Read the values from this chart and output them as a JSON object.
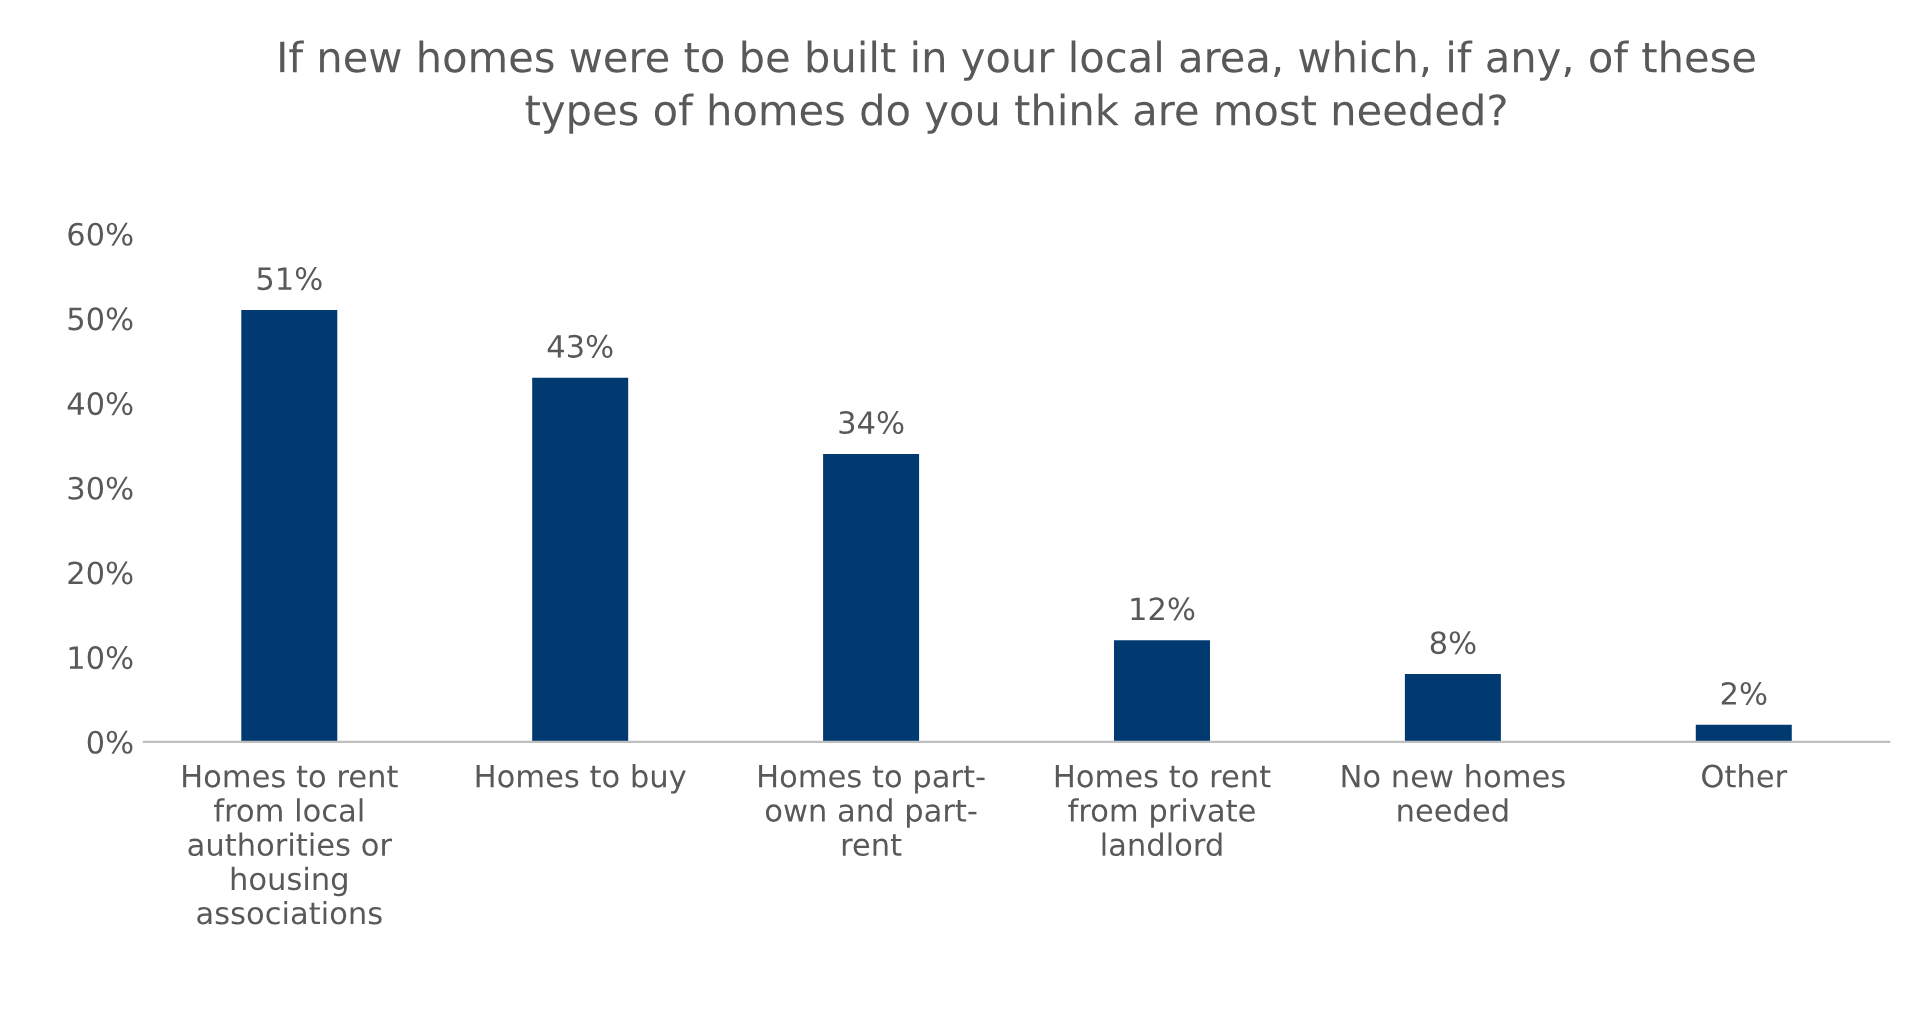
{
  "chart_data": {
    "type": "bar",
    "title": "If new homes were to be built in your local area, which, if any, of these\ntypes of homes do you think are most needed?",
    "categories": [
      "Homes to rent\nfrom local\nauthorities or\nhousing\nassociations",
      "Homes to buy",
      "Homes to part-\nown and part-\nrent",
      "Homes to rent\nfrom private\nlandlord",
      "No new homes\nneeded",
      "Other"
    ],
    "values": [
      51,
      43,
      34,
      12,
      8,
      2
    ],
    "value_labels": [
      "51%",
      "43%",
      "34%",
      "12%",
      "8%",
      "2%"
    ],
    "color": "#003a70",
    "ylim": [
      0,
      60
    ],
    "yticks": [
      {
        "value": 0,
        "label": "0%"
      },
      {
        "value": 10,
        "label": "10%"
      },
      {
        "value": 20,
        "label": "20%"
      },
      {
        "value": 30,
        "label": "30%"
      },
      {
        "value": 40,
        "label": "40%"
      },
      {
        "value": 50,
        "label": "50%"
      },
      {
        "value": 60,
        "label": "60%"
      }
    ],
    "grid": false
  }
}
